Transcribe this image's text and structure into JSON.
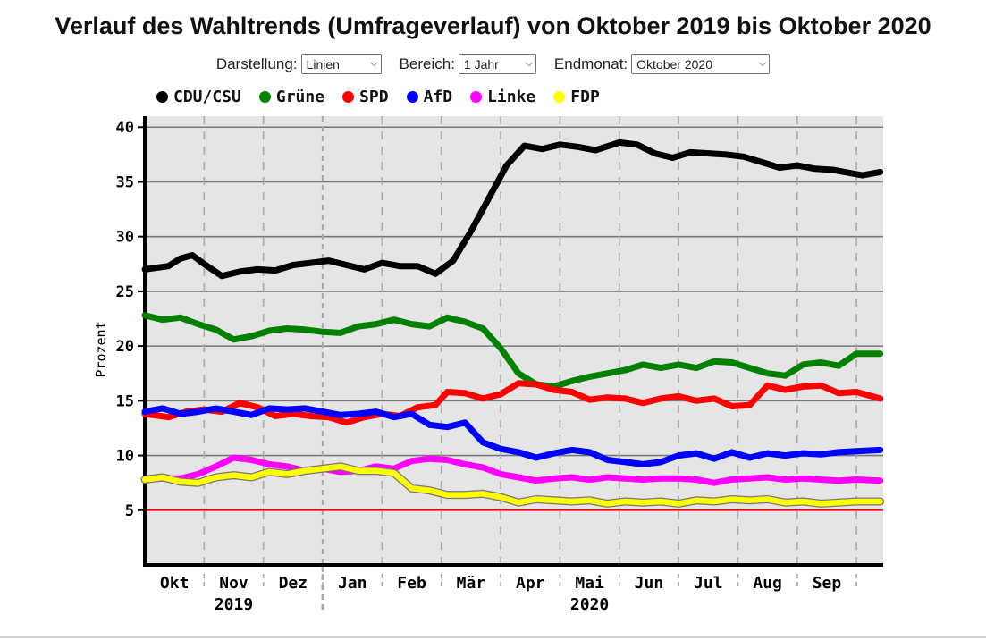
{
  "page": {
    "title": "Verlauf des Wahltrends (Umfrageverlauf) von Oktober 2019 bis Oktober 2020"
  },
  "controls": {
    "darstellung": {
      "label": "Darstellung:",
      "value": "Linien"
    },
    "bereich": {
      "label": "Bereich:",
      "value": "1 Jahr"
    },
    "endmonat": {
      "label": "Endmonat:",
      "value": "Oktober 2020"
    }
  },
  "colors": {
    "CDU/CSU": "#000000",
    "Grüne": "#008000",
    "SPD": "#ff0000",
    "AfD": "#0000ff",
    "Linke": "#ff00ff",
    "FDP": "#ffff00",
    "plot_bg": "#e5e5e5",
    "grid": "#777777",
    "threshold": "#ff0000"
  },
  "chart_data": {
    "type": "line",
    "title": "Verlauf des Wahltrends (Umfrageverlauf) von Oktober 2019 bis Oktober 2020",
    "ylabel": "Prozent",
    "xlabel": "",
    "ylim": [
      0,
      41
    ],
    "xlim": [
      0,
      12.45
    ],
    "yticks": [
      5,
      10,
      15,
      20,
      25,
      30,
      35,
      40
    ],
    "threshold": 5,
    "grid": "horizontal gridlines, dashed vertical month separators",
    "legend_position": "top",
    "months": [
      "Okt",
      "Nov",
      "Dez",
      "Jan",
      "Feb",
      "Mär",
      "Apr",
      "Mai",
      "Jun",
      "Jul",
      "Aug",
      "Sep"
    ],
    "years": [
      {
        "label": "2019",
        "at": 1.5
      },
      {
        "label": "2020",
        "at": 7.5
      }
    ],
    "series": [
      {
        "name": "CDU/CSU",
        "x": [
          0,
          0.4,
          0.6,
          0.8,
          1.0,
          1.3,
          1.6,
          1.9,
          2.2,
          2.5,
          2.8,
          3.1,
          3.4,
          3.7,
          4.0,
          4.3,
          4.6,
          4.9,
          5.2,
          5.5,
          5.8,
          6.1,
          6.4,
          6.7,
          7.0,
          7.3,
          7.6,
          8.0,
          8.3,
          8.6,
          8.9,
          9.2,
          9.5,
          9.8,
          10.1,
          10.4,
          10.7,
          11.0,
          11.3,
          11.6,
          11.9,
          12.1,
          12.4
        ],
        "y": [
          27.0,
          27.3,
          28.0,
          28.3,
          27.5,
          26.4,
          26.8,
          27.0,
          26.9,
          27.4,
          27.6,
          27.8,
          27.4,
          27.0,
          27.6,
          27.3,
          27.3,
          26.6,
          27.8,
          30.5,
          33.5,
          36.5,
          38.3,
          38.0,
          38.4,
          38.2,
          37.9,
          38.6,
          38.4,
          37.6,
          37.2,
          37.7,
          37.6,
          37.5,
          37.3,
          36.8,
          36.3,
          36.5,
          36.2,
          36.1,
          35.8,
          35.6,
          35.9
        ]
      },
      {
        "name": "Grüne",
        "x": [
          0,
          0.3,
          0.6,
          0.9,
          1.2,
          1.5,
          1.8,
          2.1,
          2.4,
          2.7,
          3.0,
          3.3,
          3.6,
          3.9,
          4.2,
          4.5,
          4.8,
          5.1,
          5.4,
          5.7,
          6.0,
          6.3,
          6.6,
          6.9,
          7.2,
          7.5,
          7.8,
          8.1,
          8.4,
          8.7,
          9.0,
          9.3,
          9.6,
          9.9,
          10.2,
          10.5,
          10.8,
          11.1,
          11.4,
          11.7,
          12.0,
          12.4
        ],
        "y": [
          22.8,
          22.4,
          22.6,
          22.0,
          21.5,
          20.6,
          20.9,
          21.4,
          21.6,
          21.5,
          21.3,
          21.2,
          21.8,
          22.0,
          22.4,
          22.0,
          21.8,
          22.6,
          22.2,
          21.6,
          19.8,
          17.5,
          16.5,
          16.3,
          16.8,
          17.2,
          17.5,
          17.8,
          18.3,
          18.0,
          18.3,
          18.0,
          18.6,
          18.5,
          18.0,
          17.5,
          17.3,
          18.3,
          18.5,
          18.2,
          19.3,
          19.3
        ]
      },
      {
        "name": "SPD",
        "x": [
          0,
          0.4,
          0.7,
          1.0,
          1.3,
          1.6,
          1.9,
          2.2,
          2.5,
          2.8,
          3.1,
          3.4,
          3.7,
          4.0,
          4.3,
          4.6,
          4.9,
          5.1,
          5.4,
          5.7,
          6.0,
          6.3,
          6.6,
          6.9,
          7.2,
          7.5,
          7.8,
          8.1,
          8.4,
          8.7,
          9.0,
          9.3,
          9.6,
          9.9,
          10.2,
          10.5,
          10.8,
          11.1,
          11.4,
          11.7,
          12.0,
          12.4
        ],
        "y": [
          13.8,
          13.5,
          14.0,
          14.2,
          14.0,
          14.8,
          14.4,
          13.6,
          13.8,
          13.6,
          13.5,
          13.0,
          13.5,
          13.8,
          13.6,
          14.4,
          14.6,
          15.8,
          15.7,
          15.2,
          15.6,
          16.6,
          16.5,
          16.0,
          15.8,
          15.1,
          15.3,
          15.2,
          14.8,
          15.2,
          15.4,
          15.0,
          15.2,
          14.5,
          14.6,
          16.4,
          16.0,
          16.3,
          16.4,
          15.7,
          15.8,
          15.2
        ]
      },
      {
        "name": "AfD",
        "x": [
          0,
          0.3,
          0.6,
          0.9,
          1.2,
          1.5,
          1.8,
          2.1,
          2.4,
          2.7,
          3.0,
          3.3,
          3.6,
          3.9,
          4.2,
          4.5,
          4.8,
          5.1,
          5.4,
          5.7,
          6.0,
          6.3,
          6.6,
          6.9,
          7.2,
          7.5,
          7.8,
          8.1,
          8.4,
          8.7,
          9.0,
          9.3,
          9.6,
          9.9,
          10.2,
          10.5,
          10.8,
          11.1,
          11.4,
          11.7,
          12.0,
          12.4
        ],
        "y": [
          14.0,
          14.3,
          13.8,
          14.0,
          14.3,
          14.0,
          13.7,
          14.3,
          14.2,
          14.3,
          14.0,
          13.7,
          13.8,
          14.0,
          13.5,
          13.8,
          12.8,
          12.6,
          13.0,
          11.2,
          10.6,
          10.3,
          9.8,
          10.2,
          10.5,
          10.3,
          9.6,
          9.4,
          9.2,
          9.4,
          10.0,
          10.2,
          9.7,
          10.3,
          9.8,
          10.2,
          10.0,
          10.2,
          10.1,
          10.3,
          10.4,
          10.5
        ]
      },
      {
        "name": "Linke",
        "x": [
          0,
          0.3,
          0.6,
          0.9,
          1.2,
          1.5,
          1.8,
          2.1,
          2.4,
          2.7,
          3.0,
          3.3,
          3.6,
          3.9,
          4.2,
          4.5,
          4.8,
          5.1,
          5.4,
          5.7,
          6.0,
          6.3,
          6.6,
          6.9,
          7.2,
          7.5,
          7.8,
          8.1,
          8.4,
          8.7,
          9.0,
          9.3,
          9.6,
          9.9,
          10.2,
          10.5,
          10.8,
          11.1,
          11.4,
          11.7,
          12.0,
          12.4
        ],
        "y": [
          7.8,
          7.9,
          7.9,
          8.3,
          9.0,
          9.8,
          9.6,
          9.2,
          9.0,
          8.6,
          8.8,
          8.5,
          8.6,
          9.0,
          8.8,
          9.5,
          9.7,
          9.6,
          9.2,
          8.9,
          8.3,
          8.0,
          7.7,
          7.9,
          8.0,
          7.8,
          8.0,
          7.9,
          7.8,
          7.9,
          7.9,
          7.8,
          7.5,
          7.8,
          7.9,
          8.0,
          7.8,
          7.9,
          7.8,
          7.7,
          7.8,
          7.7
        ]
      },
      {
        "name": "FDP",
        "x": [
          0,
          0.3,
          0.6,
          0.9,
          1.2,
          1.5,
          1.8,
          2.1,
          2.4,
          2.7,
          3.0,
          3.3,
          3.6,
          3.9,
          4.2,
          4.5,
          4.8,
          5.1,
          5.4,
          5.7,
          6.0,
          6.3,
          6.6,
          6.9,
          7.2,
          7.5,
          7.8,
          8.1,
          8.4,
          8.7,
          9.0,
          9.3,
          9.6,
          9.9,
          10.2,
          10.5,
          10.8,
          11.1,
          11.4,
          11.7,
          12.0,
          12.4
        ],
        "y": [
          7.8,
          8.0,
          7.6,
          7.5,
          8.0,
          8.2,
          8.0,
          8.5,
          8.3,
          8.6,
          8.8,
          9.0,
          8.6,
          8.6,
          8.4,
          7.0,
          6.8,
          6.4,
          6.4,
          6.5,
          6.2,
          5.7,
          6.0,
          5.9,
          5.8,
          5.9,
          5.6,
          5.8,
          5.7,
          5.8,
          5.6,
          5.9,
          5.8,
          6.0,
          5.9,
          6.0,
          5.7,
          5.8,
          5.6,
          5.7,
          5.8,
          5.8
        ]
      }
    ]
  }
}
